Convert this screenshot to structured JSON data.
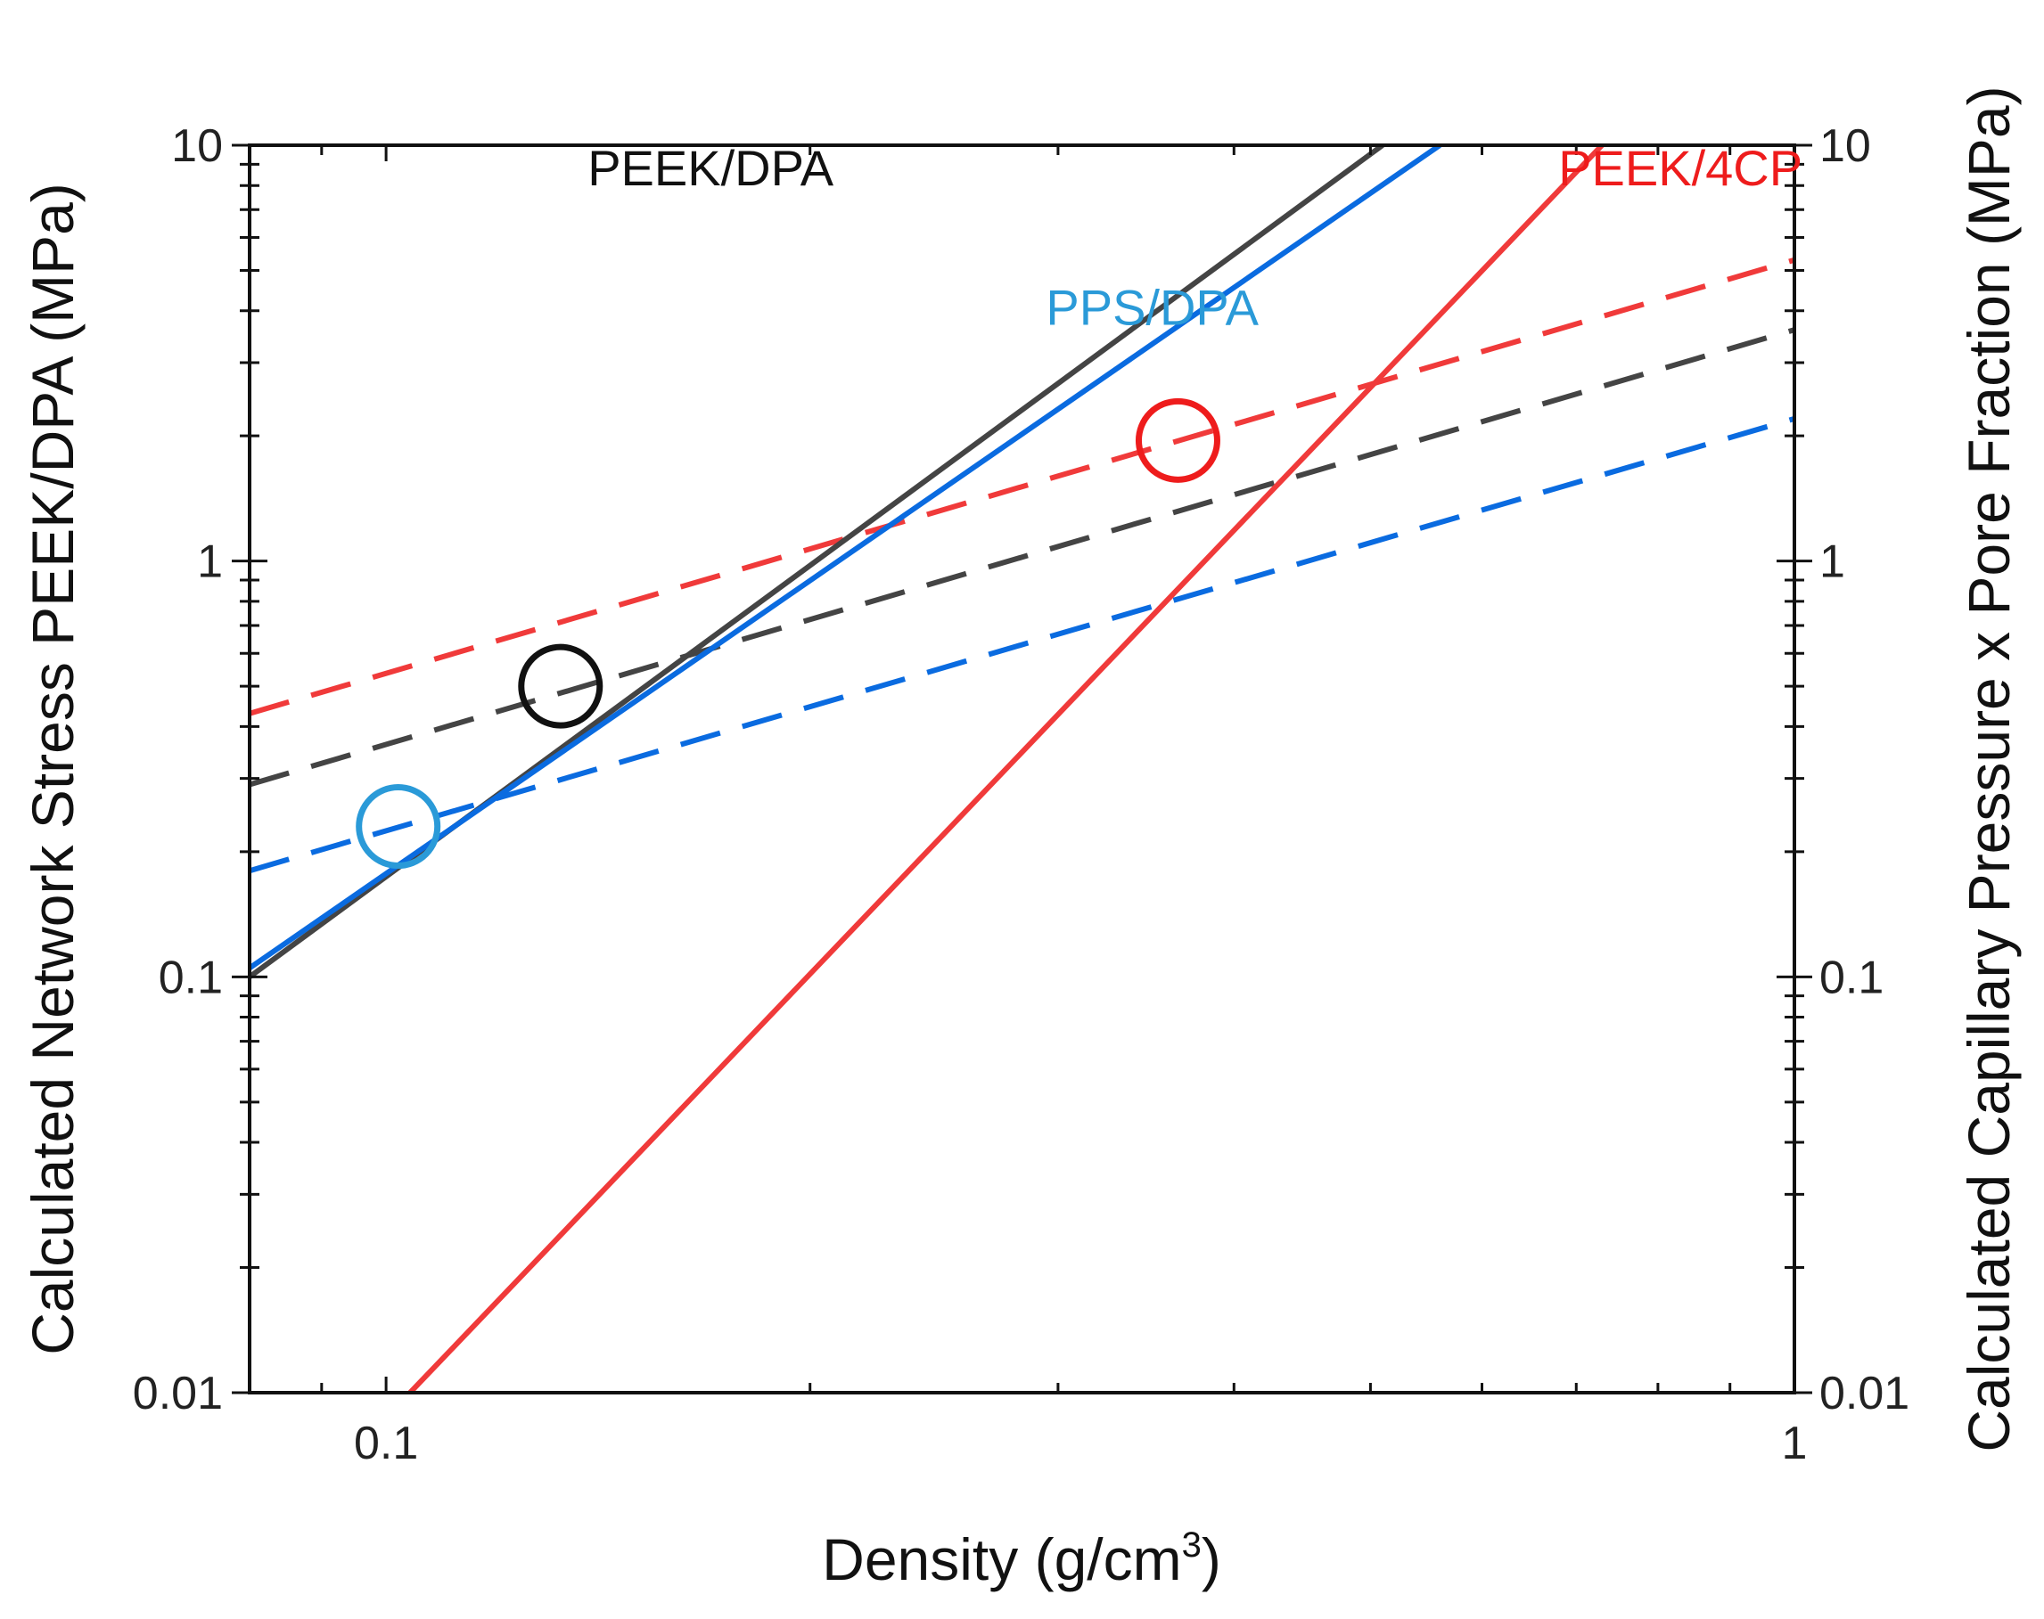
{
  "chart_data": {
    "type": "line",
    "x_scale": "log",
    "y_scale": "log",
    "xlim": [
      0.08,
      1
    ],
    "ylim": [
      0.01,
      10
    ],
    "xlabel": "Density (g/cm",
    "xlabel_sup": "3",
    "xlabel_end": ")",
    "ylabel_left": "Calculated Network Stress PEEK/DPA (MPa)",
    "ylabel_right": "Calculated Capillary Pressure x Pore Fraction (MPa)",
    "x_ticks": [
      0.1,
      1
    ],
    "x_tick_labels": [
      "0.1",
      "1"
    ],
    "y_ticks": [
      0.01,
      0.1,
      1,
      10
    ],
    "y_tick_labels": [
      "0.01",
      "0.1",
      "1",
      "10"
    ],
    "series": [
      {
        "name": "PEEK/DPA network stress",
        "style": "solid",
        "color": "#444444",
        "x": [
          0.08,
          0.51
        ],
        "y": [
          0.1,
          10
        ]
      },
      {
        "name": "PPS/DPA network stress",
        "style": "solid",
        "color": "#0A6BE0",
        "x": [
          0.08,
          0.56
        ],
        "y": [
          0.105,
          10
        ]
      },
      {
        "name": "PEEK/4CP network stress",
        "style": "solid",
        "color": "#F03A3A",
        "x": [
          0.104,
          0.73
        ],
        "y": [
          0.01,
          10
        ]
      },
      {
        "name": "PEEK/4CP capillary pressure x pore fraction",
        "style": "dashed",
        "color": "#F03A3A",
        "x": [
          0.08,
          1
        ],
        "y": [
          0.43,
          5.3
        ]
      },
      {
        "name": "PEEK/DPA capillary pressure x pore fraction",
        "style": "dashed",
        "color": "#444444",
        "x": [
          0.08,
          1
        ],
        "y": [
          0.29,
          3.6
        ]
      },
      {
        "name": "PPS/DPA capillary pressure x pore fraction",
        "style": "dashed",
        "color": "#0A6BE0",
        "x": [
          0.08,
          1
        ],
        "y": [
          0.18,
          2.2
        ]
      }
    ],
    "intersections": [
      {
        "name": "PEEK/DPA",
        "x": 0.133,
        "y": 0.5,
        "color": "#111111"
      },
      {
        "name": "PPS/DPA",
        "x": 0.102,
        "y": 0.23,
        "color": "#2A9AD8"
      },
      {
        "name": "PEEK/4CP",
        "x": 0.365,
        "y": 1.95,
        "color": "#EE1C1C"
      }
    ],
    "annotations": [
      {
        "text": "PEEK/DPA",
        "x": 0.17,
        "y": 8.0,
        "color": "#111111"
      },
      {
        "text": "PPS/DPA",
        "x": 0.35,
        "y": 3.7,
        "color": "#2A9AD8"
      },
      {
        "text": "PEEK/4CP",
        "x": 0.83,
        "y": 8.0,
        "color": "#EE1C1C"
      }
    ]
  }
}
